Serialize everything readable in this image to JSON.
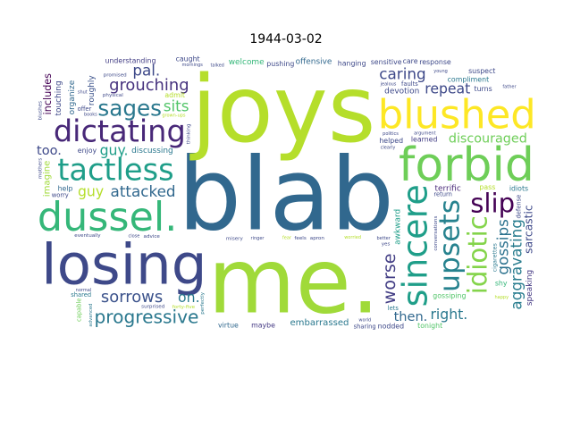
{
  "chart_data": {
    "type": "wordcloud",
    "title": "1944-03-02",
    "colormap": "viridis",
    "words": [
      {
        "text": "blab",
        "weight": 100,
        "color": "#31688e",
        "rotate": false
      },
      {
        "text": "joys",
        "weight": 92,
        "color": "#b5de2b",
        "rotate": false
      },
      {
        "text": "me.",
        "weight": 90,
        "color": "#a0da39",
        "rotate": false
      },
      {
        "text": "dussel.",
        "weight": 62,
        "color": "#35b779",
        "rotate": false
      },
      {
        "text": "forbid",
        "weight": 58,
        "color": "#6ece58",
        "rotate": false
      },
      {
        "text": "blushed",
        "weight": 50,
        "color": "#fde725",
        "rotate": false
      },
      {
        "text": "losing",
        "weight": 56,
        "color": "#3e4989",
        "rotate": false
      },
      {
        "text": "tactless",
        "weight": 30,
        "color": "#1f9e89",
        "rotate": false
      },
      {
        "text": "dictating",
        "weight": 30,
        "color": "#482878",
        "rotate": false
      },
      {
        "text": "sincere",
        "weight": 34,
        "color": "#1f9e89",
        "rotate": true
      },
      {
        "text": "upsets",
        "weight": 28,
        "color": "#26828e",
        "rotate": true
      },
      {
        "text": "idiotic",
        "weight": 26,
        "color": "#84d44b",
        "rotate": true
      },
      {
        "text": "slip",
        "weight": 26,
        "color": "#440154",
        "rotate": false
      },
      {
        "text": "sages",
        "weight": 22,
        "color": "#2a788e",
        "rotate": false
      },
      {
        "text": "progressive",
        "weight": 18,
        "color": "#2a788e",
        "rotate": false
      },
      {
        "text": "discouraged",
        "weight": 16,
        "color": "#6ece58",
        "rotate": false
      },
      {
        "text": "grouching",
        "weight": 16,
        "color": "#46327e",
        "rotate": false
      },
      {
        "text": "sorrows",
        "weight": 16,
        "color": "#3b528b",
        "rotate": false
      },
      {
        "text": "attacked",
        "weight": 15,
        "color": "#31688e",
        "rotate": false
      },
      {
        "text": "aggravating",
        "weight": 15,
        "color": "#287c8e",
        "rotate": true
      },
      {
        "text": "worse",
        "weight": 17,
        "color": "#433e85",
        "rotate": true
      },
      {
        "text": "gossips",
        "weight": 15,
        "color": "#2c728e",
        "rotate": true
      },
      {
        "text": "caring",
        "weight": 15,
        "color": "#3e4989",
        "rotate": false
      },
      {
        "text": "sits",
        "weight": 15,
        "color": "#52c569",
        "rotate": false
      },
      {
        "text": "repeat",
        "weight": 14,
        "color": "#3e4989",
        "rotate": false
      },
      {
        "text": "right.",
        "weight": 14,
        "color": "#2a788e",
        "rotate": false
      },
      {
        "text": "pal.",
        "weight": 15,
        "color": "#3e4989",
        "rotate": false
      },
      {
        "text": "guy.",
        "weight": 14,
        "color": "#1f9e89",
        "rotate": false
      },
      {
        "text": "guy",
        "weight": 14,
        "color": "#b5de2b",
        "rotate": false
      },
      {
        "text": "then.",
        "weight": 13,
        "color": "#31688e",
        "rotate": false
      },
      {
        "text": "on.",
        "weight": 14,
        "color": "#2a788e",
        "rotate": false
      },
      {
        "text": "too.",
        "weight": 13,
        "color": "#3e4989",
        "rotate": false
      },
      {
        "text": "sarcastic",
        "weight": 11,
        "color": "#3e4989",
        "rotate": true
      },
      {
        "text": "cigarettes",
        "weight": 9,
        "color": "#2a788e",
        "rotate": true
      },
      {
        "text": "includes",
        "weight": 10,
        "color": "#440154",
        "rotate": true
      },
      {
        "text": "imagine",
        "weight": 9,
        "color": "#a0da39",
        "rotate": true
      },
      {
        "text": "roughly",
        "weight": 8,
        "color": "#3b528b",
        "rotate": true
      },
      {
        "text": "awkward",
        "weight": 8,
        "color": "#1f9e89",
        "rotate": true
      },
      {
        "text": "organize",
        "weight": 8,
        "color": "#31688e",
        "rotate": true
      },
      {
        "text": "touching",
        "weight": 8,
        "color": "#3e4989",
        "rotate": true
      },
      {
        "text": "speaking",
        "weight": 8,
        "color": "#443983",
        "rotate": true
      },
      {
        "text": "embarrassed",
        "weight": 9,
        "color": "#2a788e",
        "rotate": false
      },
      {
        "text": "devotion",
        "weight": 8,
        "color": "#3e4989",
        "rotate": false
      },
      {
        "text": "terrific",
        "weight": 8,
        "color": "#482878",
        "rotate": false
      },
      {
        "text": "welcome",
        "weight": 8,
        "color": "#35b779",
        "rotate": false
      },
      {
        "text": "offensive",
        "weight": 8,
        "color": "#31688e",
        "rotate": false
      },
      {
        "text": "discussing",
        "weight": 8,
        "color": "#2a788e",
        "rotate": false
      },
      {
        "text": "learned",
        "weight": 7,
        "color": "#433e85",
        "rotate": false
      },
      {
        "text": "pushing",
        "weight": 7,
        "color": "#3e4989",
        "rotate": false
      },
      {
        "text": "hanging",
        "weight": 7,
        "color": "#3e4989",
        "rotate": false
      },
      {
        "text": "virtue",
        "weight": 7,
        "color": "#31688e",
        "rotate": false
      },
      {
        "text": "enjoy",
        "weight": 7,
        "color": "#3e4989",
        "rotate": false
      },
      {
        "text": "admit",
        "weight": 7,
        "color": "#b5de2b",
        "rotate": false
      },
      {
        "text": "maybe",
        "weight": 7,
        "color": "#443983",
        "rotate": false
      },
      {
        "text": "sensitive",
        "weight": 7,
        "color": "#3e4989",
        "rotate": false
      },
      {
        "text": "compliment",
        "weight": 7,
        "color": "#2a788e",
        "rotate": false
      },
      {
        "text": "helped",
        "weight": 7,
        "color": "#3e4989",
        "rotate": false
      },
      {
        "text": "caught",
        "weight": 7,
        "color": "#3e4989",
        "rotate": false
      },
      {
        "text": "help",
        "weight": 7,
        "color": "#31688e",
        "rotate": false
      },
      {
        "text": "pass",
        "weight": 7,
        "color": "#b5de2b",
        "rotate": false
      },
      {
        "text": "care",
        "weight": 7,
        "color": "#3e4989",
        "rotate": false
      },
      {
        "text": "tonight",
        "weight": 7,
        "color": "#52c569",
        "rotate": false
      },
      {
        "text": "understanding",
        "weight": 7,
        "color": "#433e85",
        "rotate": false
      },
      {
        "text": "suspect",
        "weight": 7,
        "color": "#3e4989",
        "rotate": false
      },
      {
        "text": "gossiping",
        "weight": 7,
        "color": "#52c569",
        "rotate": false
      },
      {
        "text": "nodded",
        "weight": 7,
        "color": "#3e4989",
        "rotate": false
      },
      {
        "text": "response",
        "weight": 7,
        "color": "#3e4989",
        "rotate": false
      },
      {
        "text": "idiots",
        "weight": 7,
        "color": "#2a788e",
        "rotate": false
      },
      {
        "text": "turns",
        "weight": 7,
        "color": "#3e4989",
        "rotate": false
      },
      {
        "text": "sharing",
        "weight": 6,
        "color": "#3e4989",
        "rotate": false
      },
      {
        "text": "shy",
        "weight": 7,
        "color": "#35b779",
        "rotate": false
      },
      {
        "text": "return",
        "weight": 6,
        "color": "#3e4989",
        "rotate": false
      },
      {
        "text": "faults",
        "weight": 6,
        "color": "#3e4989",
        "rotate": false
      },
      {
        "text": "lets",
        "weight": 6,
        "color": "#2a788e",
        "rotate": false
      },
      {
        "text": "worry",
        "weight": 6,
        "color": "#3e4989",
        "rotate": false
      },
      {
        "text": "shared",
        "weight": 6,
        "color": "#2a788e",
        "rotate": false
      },
      {
        "text": "offer",
        "weight": 6,
        "color": "#3e4989",
        "rotate": false
      },
      {
        "text": "capable",
        "weight": 6,
        "color": "#6ece58",
        "rotate": true
      },
      {
        "text": "advanced",
        "weight": 6,
        "color": "#2a788e",
        "rotate": true
      },
      {
        "text": "defense",
        "weight": 6,
        "color": "#3e4989",
        "rotate": true
      },
      {
        "text": "physical",
        "weight": 5,
        "color": "#3e4989",
        "rotate": false
      },
      {
        "text": "apron",
        "weight": 5,
        "color": "#3e4989",
        "rotate": false
      },
      {
        "text": "advice",
        "weight": 5,
        "color": "#3e4989",
        "rotate": false
      },
      {
        "text": "misery",
        "weight": 5,
        "color": "#3e4989",
        "rotate": false
      },
      {
        "text": "feels",
        "weight": 5,
        "color": "#3e4989",
        "rotate": false
      },
      {
        "text": "yes",
        "weight": 5,
        "color": "#3e4989",
        "rotate": false
      },
      {
        "text": "promised",
        "weight": 5,
        "color": "#3e4989",
        "rotate": false
      },
      {
        "text": "surprised",
        "weight": 5,
        "color": "#3e4989",
        "rotate": false
      },
      {
        "text": "eventually",
        "weight": 5,
        "color": "#3e4989",
        "rotate": false
      },
      {
        "text": "forty-five",
        "weight": 5,
        "color": "#b5de2b",
        "rotate": false
      },
      {
        "text": "perfectly",
        "weight": 5,
        "color": "#2a788e",
        "rotate": true
      },
      {
        "text": "thinking",
        "weight": 5,
        "color": "#3e4989",
        "rotate": true
      },
      {
        "text": "conversations",
        "weight": 5,
        "color": "#3e4989",
        "rotate": true
      },
      {
        "text": "mothers",
        "weight": 5,
        "color": "#3e4989",
        "rotate": true
      },
      {
        "text": "blushes",
        "weight": 5,
        "color": "#3e4989",
        "rotate": true
      },
      {
        "text": "ringer",
        "weight": 4,
        "color": "#3e4989",
        "rotate": false
      },
      {
        "text": "worried",
        "weight": 4,
        "color": "#b5de2b",
        "rotate": false
      },
      {
        "text": "shut",
        "weight": 4,
        "color": "#3e4989",
        "rotate": false
      },
      {
        "text": "grown-ups",
        "weight": 4,
        "color": "#b5de2b",
        "rotate": false
      },
      {
        "text": "clearly",
        "weight": 4,
        "color": "#3e4989",
        "rotate": false
      },
      {
        "text": "argument",
        "weight": 4,
        "color": "#3e4989",
        "rotate": false
      },
      {
        "text": "mornings",
        "weight": 4,
        "color": "#3e4989",
        "rotate": false
      },
      {
        "text": "politics",
        "weight": 4,
        "color": "#3e4989",
        "rotate": false
      },
      {
        "text": "jealous",
        "weight": 4,
        "color": "#3e4989",
        "rotate": false
      },
      {
        "text": "normal",
        "weight": 4,
        "color": "#3e4989",
        "rotate": false
      },
      {
        "text": "happy",
        "weight": 4,
        "color": "#b5de2b",
        "rotate": false
      },
      {
        "text": "talked",
        "weight": 4,
        "color": "#3e4989",
        "rotate": false
      },
      {
        "text": "world",
        "weight": 4,
        "color": "#3e4989",
        "rotate": false
      },
      {
        "text": "better",
        "weight": 4,
        "color": "#3e4989",
        "rotate": false
      },
      {
        "text": "young",
        "weight": 4,
        "color": "#3e4989",
        "rotate": false
      },
      {
        "text": "fear",
        "weight": 4,
        "color": "#b5de2b",
        "rotate": false
      },
      {
        "text": "close",
        "weight": 4,
        "color": "#3e4989",
        "rotate": false
      },
      {
        "text": "father",
        "weight": 4,
        "color": "#3e4989",
        "rotate": false
      },
      {
        "text": "books",
        "weight": 4,
        "color": "#3e4989",
        "rotate": false
      }
    ]
  }
}
